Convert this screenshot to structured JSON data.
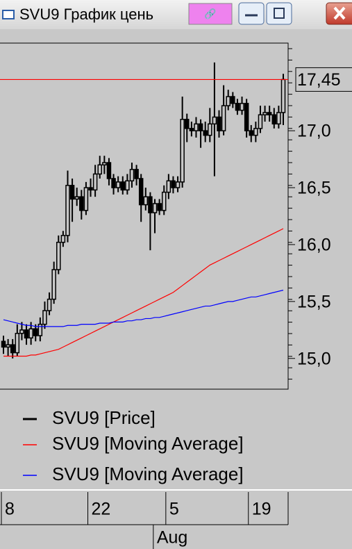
{
  "window": {
    "title": "SVU9 График цень"
  },
  "chart_data": {
    "type": "candlestick",
    "categories": [
      "8",
      null,
      null,
      null,
      null,
      null,
      null,
      null,
      null,
      null,
      null,
      null,
      null,
      null,
      null,
      null,
      null,
      null,
      null,
      "22",
      null,
      null,
      null,
      null,
      null,
      null,
      null,
      null,
      null,
      null,
      null,
      null,
      null,
      null,
      null,
      null,
      "5",
      null,
      null,
      null,
      null,
      null,
      null,
      null,
      null,
      null,
      null,
      null,
      null,
      null,
      null,
      null,
      null,
      null,
      "19",
      null,
      null,
      null,
      null,
      null,
      null,
      null
    ],
    "month_label": "Aug",
    "ylim": [
      14.73,
      17.77
    ],
    "yticks": [
      {
        "value": 15,
        "label": "15,0"
      },
      {
        "value": 15.5,
        "label": "15,5"
      },
      {
        "value": 16,
        "label": "16,0"
      },
      {
        "value": 16.5,
        "label": "16,5"
      },
      {
        "value": 17,
        "label": "17,0"
      }
    ],
    "last_price": {
      "value": 17.45,
      "label": "17,45",
      "color": "#ff0000"
    },
    "series": [
      {
        "name": "SVU9 [Price]",
        "color": "#000000",
        "open": [
          15.15,
          15.1,
          15.12,
          15.05,
          15.22,
          15.25,
          15.18,
          15.26,
          15.2,
          15.3,
          15.42,
          15.52,
          15.78,
          16.02,
          16.08,
          16.52,
          16.4,
          16.42,
          16.3,
          16.5,
          16.48,
          16.62,
          16.7,
          16.72,
          16.58,
          16.5,
          16.55,
          16.48,
          16.56,
          16.66,
          16.58,
          16.35,
          16.42,
          16.28,
          16.36,
          16.3,
          16.46,
          16.56,
          16.5,
          16.55,
          17.1,
          17.02,
          17.0,
          17.06,
          17.0,
          16.96,
          17.06,
          17.12,
          17.0,
          17.22,
          17.3,
          17.24,
          17.18,
          17.24,
          17.0,
          16.96,
          17.02,
          17.14,
          17.16,
          17.14,
          17.06,
          17.16
        ],
        "high": [
          15.2,
          15.17,
          15.17,
          15.3,
          15.32,
          15.3,
          15.32,
          15.3,
          15.36,
          15.5,
          15.58,
          15.85,
          16.08,
          16.12,
          16.65,
          16.58,
          16.5,
          16.48,
          16.55,
          16.58,
          16.7,
          16.78,
          16.78,
          16.76,
          16.62,
          16.6,
          16.6,
          16.62,
          16.72,
          16.7,
          16.62,
          16.5,
          16.46,
          16.4,
          16.4,
          16.52,
          16.62,
          16.6,
          16.6,
          17.3,
          17.15,
          17.08,
          17.12,
          17.1,
          17.08,
          17.2,
          17.6,
          17.18,
          17.4,
          17.36,
          17.34,
          17.28,
          17.3,
          17.28,
          17.05,
          17.08,
          17.22,
          17.22,
          17.22,
          17.2,
          17.22,
          17.5
        ],
        "low": [
          15.04,
          15.02,
          15.0,
          15.02,
          15.16,
          15.12,
          15.12,
          15.15,
          15.15,
          15.26,
          15.38,
          15.48,
          15.74,
          15.98,
          16.02,
          16.2,
          16.34,
          16.22,
          16.26,
          16.42,
          16.42,
          16.58,
          16.62,
          16.52,
          16.44,
          16.46,
          16.44,
          16.44,
          16.5,
          16.52,
          16.2,
          16.3,
          15.95,
          16.1,
          16.26,
          16.26,
          16.4,
          16.45,
          16.46,
          16.5,
          16.9,
          16.95,
          16.94,
          16.85,
          16.9,
          16.9,
          16.6,
          16.94,
          16.96,
          17.18,
          17.2,
          17.14,
          17.14,
          16.94,
          16.9,
          16.9,
          16.98,
          17.08,
          17.08,
          17.02,
          17.02,
          17.05
        ],
        "close": [
          15.1,
          15.12,
          15.05,
          15.22,
          15.25,
          15.18,
          15.26,
          15.2,
          15.3,
          15.42,
          15.52,
          15.78,
          16.02,
          16.08,
          16.52,
          16.4,
          16.42,
          16.3,
          16.5,
          16.48,
          16.62,
          16.7,
          16.72,
          16.58,
          16.5,
          16.55,
          16.48,
          16.56,
          16.66,
          16.58,
          16.35,
          16.42,
          16.28,
          16.36,
          16.3,
          16.46,
          16.56,
          16.5,
          16.55,
          17.1,
          17.02,
          17.0,
          17.06,
          17.0,
          16.96,
          17.06,
          17.12,
          17.0,
          17.22,
          17.3,
          17.24,
          17.18,
          17.24,
          17.0,
          16.96,
          17.02,
          17.14,
          17.16,
          17.14,
          17.06,
          17.16,
          17.45
        ]
      },
      {
        "name": "SVU9 [Moving Average]",
        "color": "#ff0000",
        "values": [
          15.02,
          15.02,
          15.02,
          15.02,
          15.02,
          15.02,
          15.03,
          15.03,
          15.04,
          15.05,
          15.06,
          15.07,
          15.08,
          15.1,
          15.12,
          15.14,
          15.16,
          15.18,
          15.2,
          15.22,
          15.24,
          15.26,
          15.28,
          15.3,
          15.32,
          15.34,
          15.36,
          15.38,
          15.4,
          15.42,
          15.44,
          15.46,
          15.48,
          15.5,
          15.52,
          15.54,
          15.56,
          15.58,
          15.61,
          15.64,
          15.67,
          15.7,
          15.73,
          15.76,
          15.79,
          15.82,
          15.84,
          15.86,
          15.88,
          15.9,
          15.92,
          15.94,
          15.96,
          15.98,
          16.0,
          16.02,
          16.04,
          16.06,
          16.08,
          16.1,
          16.12,
          16.14
        ]
      },
      {
        "name": "SVU9 [Moving Average]",
        "color": "#0000ff",
        "values": [
          15.34,
          15.33,
          15.32,
          15.31,
          15.3,
          15.29,
          15.29,
          15.28,
          15.28,
          15.28,
          15.28,
          15.28,
          15.28,
          15.28,
          15.29,
          15.29,
          15.29,
          15.3,
          15.3,
          15.3,
          15.3,
          15.31,
          15.31,
          15.31,
          15.32,
          15.32,
          15.32,
          15.33,
          15.33,
          15.34,
          15.34,
          15.35,
          15.35,
          15.36,
          15.36,
          15.37,
          15.38,
          15.39,
          15.4,
          15.41,
          15.42,
          15.43,
          15.44,
          15.45,
          15.46,
          15.46,
          15.47,
          15.48,
          15.49,
          15.5,
          15.5,
          15.51,
          15.52,
          15.53,
          15.54,
          15.54,
          15.55,
          15.56,
          15.57,
          15.58,
          15.59,
          15.6
        ]
      }
    ]
  }
}
